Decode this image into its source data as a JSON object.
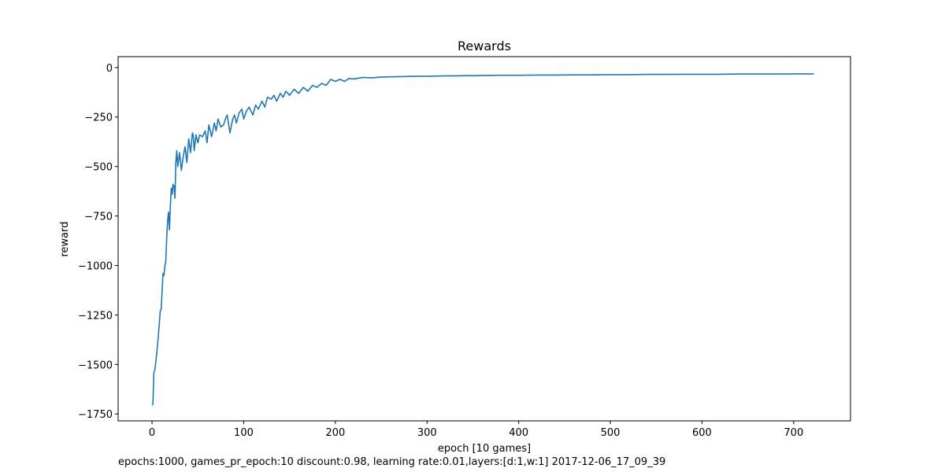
{
  "chart_data": {
    "type": "line",
    "title": "Rewards",
    "xlabel": "epoch [10 games]",
    "ylabel": "reward",
    "xlim": [
      -37,
      762
    ],
    "ylim": [
      -1785,
      55
    ],
    "xticks": [
      0,
      100,
      200,
      300,
      400,
      500,
      600,
      700
    ],
    "yticks": [
      0,
      -250,
      -500,
      -750,
      -1000,
      -1250,
      -1500,
      -1750
    ],
    "ytick_labels": [
      "0",
      "−250",
      "−500",
      "−750",
      "−1000",
      "−1250",
      "−1500",
      "−1750"
    ],
    "grid": false,
    "line_color": "#1f77b4",
    "series": [
      {
        "x": [
          0,
          1,
          2,
          3,
          5,
          7,
          9,
          10,
          12,
          13,
          14,
          15,
          16,
          17,
          18,
          19,
          20,
          21,
          22,
          23,
          24,
          25,
          26,
          27,
          28,
          30,
          32,
          34,
          36,
          38,
          40,
          42,
          44,
          45,
          46,
          48,
          50,
          52,
          55,
          58,
          60,
          62,
          65,
          68,
          70,
          72,
          75,
          78,
          80,
          82,
          85,
          88,
          90,
          92,
          95,
          98,
          100,
          103,
          106,
          110,
          113,
          116,
          120,
          123,
          126,
          130,
          133,
          136,
          140,
          143,
          146,
          150,
          155,
          160,
          165,
          170,
          175,
          180,
          185,
          190,
          195,
          200,
          205,
          210,
          215,
          220,
          230,
          240,
          250,
          260,
          270,
          280,
          290,
          300,
          310,
          320,
          330,
          340,
          350,
          360,
          380,
          400,
          420,
          440,
          460,
          480,
          500,
          520,
          540,
          560,
          580,
          600,
          620,
          640,
          660,
          680,
          700,
          722
        ],
        "y": [
          -1705,
          -1700,
          -1540,
          -1530,
          -1450,
          -1350,
          -1230,
          -1220,
          -1040,
          -1050,
          -1000,
          -980,
          -860,
          -770,
          -730,
          -820,
          -700,
          -610,
          -640,
          -590,
          -600,
          -660,
          -480,
          -420,
          -500,
          -430,
          -520,
          -450,
          -400,
          -480,
          -360,
          -430,
          -330,
          -340,
          -420,
          -340,
          -380,
          -340,
          -350,
          -320,
          -380,
          -290,
          -350,
          -280,
          -320,
          -260,
          -300,
          -290,
          -260,
          -240,
          -330,
          -260,
          -240,
          -280,
          -230,
          -210,
          -260,
          -220,
          -200,
          -240,
          -190,
          -210,
          -170,
          -200,
          -150,
          -160,
          -140,
          -170,
          -130,
          -150,
          -120,
          -140,
          -110,
          -130,
          -100,
          -120,
          -90,
          -100,
          -80,
          -90,
          -60,
          -70,
          -60,
          -70,
          -55,
          -58,
          -50,
          -52,
          -48,
          -47,
          -46,
          -45,
          -44,
          -44,
          -43,
          -42,
          -42,
          -41,
          -41,
          -40,
          -39,
          -39,
          -38,
          -38,
          -37,
          -37,
          -36,
          -36,
          -35,
          -35,
          -34,
          -34,
          -34,
          -33,
          -33,
          -33,
          -32,
          -32
        ]
      }
    ]
  },
  "footnote": "epochs:1000, games_pr_epoch:10 discount:0.98, learning rate:0.01,layers:[d:1,w:1] 2017-12-06_17_09_39"
}
